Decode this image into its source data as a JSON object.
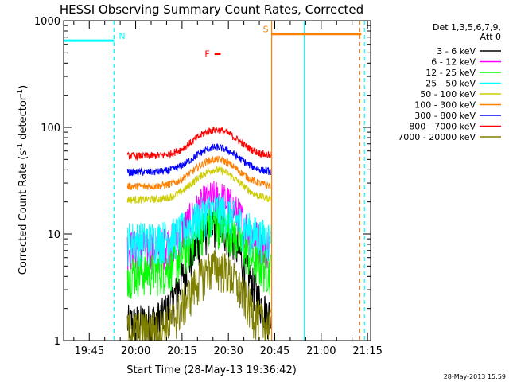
{
  "chart_data": {
    "type": "line",
    "title": "HESSI Observing Summary Count Rates, Corrected",
    "xlabel": "Start Time (28-May-13 19:36:42)",
    "ylabel_main": "Corrected Count Rate (s",
    "ylabel_sup1": "-1",
    "ylabel_mid": " detector",
    "ylabel_sup2": "-1",
    "ylabel_end": ")",
    "y_scale": "log",
    "ylim": [
      1,
      1000
    ],
    "xlim": [
      "19:36:42",
      "21:16:00"
    ],
    "x_ticks": [
      "19:45",
      "20:00",
      "20:15",
      "20:30",
      "20:45",
      "21:00",
      "21:15"
    ],
    "y_ticks": [
      "1",
      "10",
      "100",
      "1000"
    ],
    "timestamp": "28-May-2013 15:59",
    "legend": {
      "header_line1": "Det 1,3,5,6,7,9,",
      "header_line2": "Att 0",
      "placement": "right"
    },
    "series": [
      {
        "name": "3 - 6 keV",
        "color": "#000000",
        "base": 1.5,
        "peak": 12
      },
      {
        "name": "6 - 12 keV",
        "color": "#ff00ff",
        "base": 7.5,
        "peak": 22
      },
      {
        "name": "12 - 25 keV",
        "color": "#00ff00",
        "base": 4.5,
        "peak": 13
      },
      {
        "name": "25 - 50 keV",
        "color": "#00ffff",
        "base": 9.0,
        "peak": 17
      },
      {
        "name": "50 - 100 keV",
        "color": "#cccc00",
        "base": 21,
        "peak": 40
      },
      {
        "name": "100 - 300 keV",
        "color": "#ff8000",
        "base": 28,
        "peak": 50
      },
      {
        "name": "300 - 800 keV",
        "color": "#0000ff",
        "base": 38,
        "peak": 65
      },
      {
        "name": "800 - 7000 keV",
        "color": "#ff0000",
        "base": 54,
        "peak": 95
      },
      {
        "name": "7000 - 20000 keV",
        "color": "#808000",
        "base": 1.3,
        "peak": 5
      }
    ],
    "data_window": [
      "19:57:20",
      "20:43:40"
    ],
    "flags": [
      {
        "label": "N",
        "color": "#00ffff",
        "x_start": "19:36:42",
        "x_end": "19:53:00",
        "y": 650
      },
      {
        "label": "S",
        "color": "#ff8000",
        "x_start": "20:44:00",
        "x_end": "21:13:00",
        "y": 750
      },
      {
        "label": "F",
        "color": "#ff0000",
        "x_start": "20:25:30",
        "x_end": "20:27:30",
        "y": 490
      }
    ],
    "vlines": [
      {
        "color": "#00ffff",
        "x": "19:53:00",
        "style": "dashed"
      },
      {
        "color": "#ff8000",
        "x": "20:44:00",
        "style": "solid"
      },
      {
        "color": "#00ffff",
        "x": "20:54:30",
        "style": "solid"
      },
      {
        "color": "#ff8000",
        "x": "21:12:30",
        "style": "dashed"
      },
      {
        "color": "#00ffff",
        "x": "21:14:00",
        "style": "dashed"
      }
    ]
  }
}
